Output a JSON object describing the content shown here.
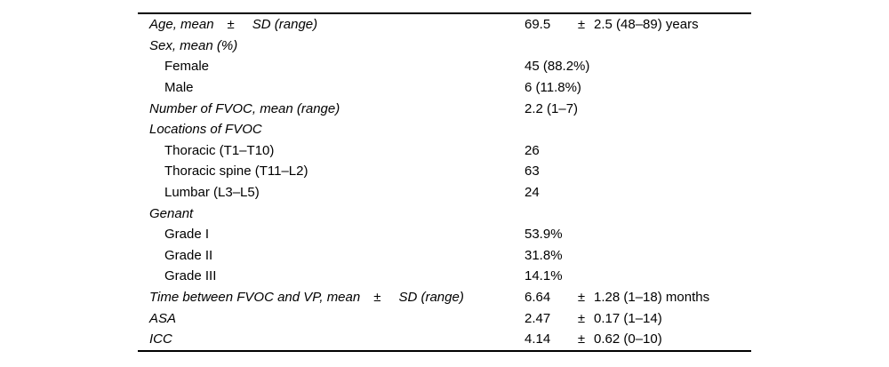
{
  "page": {
    "background_color": "#ffffff",
    "text_color": "#000000",
    "rule_color": "#000000"
  },
  "table": {
    "rows": [
      {
        "label": "Age, mean",
        "label_pm": "±",
        "label_suffix": "SD (range)",
        "italic": true,
        "indent": false,
        "value_mean": "69.5",
        "value_pm": "±",
        "value_rest": "2.5 (48–89) years"
      },
      {
        "label": "Sex, mean (%)",
        "italic": true,
        "indent": false
      },
      {
        "label": "Female",
        "italic": false,
        "indent": true,
        "value": "45 (88.2%)"
      },
      {
        "label": "Male",
        "italic": false,
        "indent": true,
        "value": "6 (11.8%)"
      },
      {
        "label": "Number of FVOC, mean (range)",
        "italic": true,
        "indent": false,
        "value": "2.2 (1–7)"
      },
      {
        "label": "Locations of FVOC",
        "italic": true,
        "indent": false
      },
      {
        "label": "Thoracic (T1–T10)",
        "italic": false,
        "indent": true,
        "value": "26"
      },
      {
        "label": "Thoracic spine (T11–L2)",
        "italic": false,
        "indent": true,
        "value": "63"
      },
      {
        "label": "Lumbar (L3–L5)",
        "italic": false,
        "indent": true,
        "value": "24"
      },
      {
        "label": "Genant",
        "italic": true,
        "indent": false
      },
      {
        "label": "Grade I",
        "italic": false,
        "indent": true,
        "value": "53.9%"
      },
      {
        "label": "Grade II",
        "italic": false,
        "indent": true,
        "value": "31.8%"
      },
      {
        "label": "Grade III",
        "italic": false,
        "indent": true,
        "value": "14.1%"
      },
      {
        "label": "Time between FVOC and VP, mean",
        "label_pm": "±",
        "label_suffix": "SD (range)",
        "italic": true,
        "indent": false,
        "value_mean": "6.64",
        "value_pm": "±",
        "value_rest": "1.28 (1–18) months"
      },
      {
        "label": "ASA",
        "italic": true,
        "indent": false,
        "value_mean": "2.47",
        "value_pm": "±",
        "value_rest": "0.17 (1–14)"
      },
      {
        "label": "ICC",
        "italic": true,
        "indent": false,
        "value_mean": "4.14",
        "value_pm": "±",
        "value_rest": "0.62 (0–10)"
      }
    ]
  }
}
